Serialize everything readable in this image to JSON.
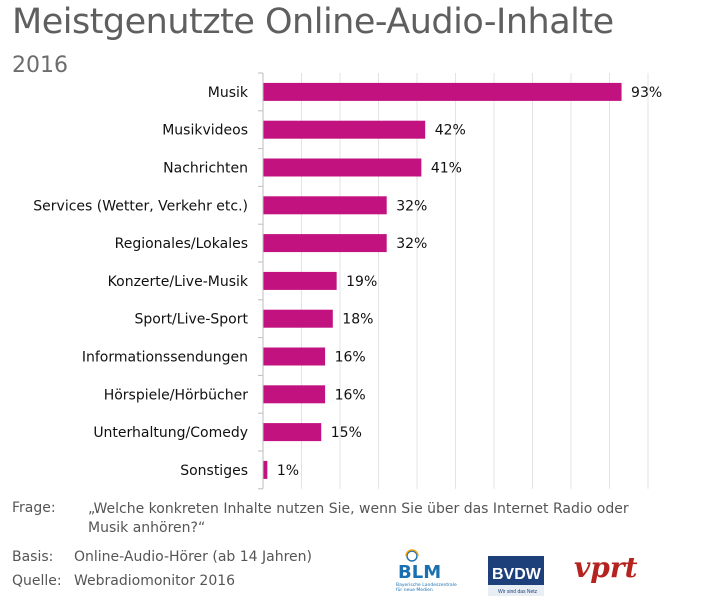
{
  "title": "Meistgenutzte Online-Audio-Inhalte",
  "subtitle": "2016",
  "chart_data": {
    "type": "bar",
    "orientation": "horizontal",
    "categories": [
      "Musik",
      "Musikvideos",
      "Nachrichten",
      "Services (Wetter, Verkehr etc.)",
      "Regionales/Lokales",
      "Konzerte/Live-Musik",
      "Sport/Live-Sport",
      "Informationssendungen",
      "Hörspiele/Hörbücher",
      "Unterhaltung/Comedy",
      "Sonstiges"
    ],
    "values": [
      93,
      42,
      41,
      32,
      32,
      19,
      18,
      16,
      16,
      15,
      1
    ],
    "value_labels": [
      "93%",
      "42%",
      "41%",
      "32%",
      "32%",
      "19%",
      "18%",
      "16%",
      "16%",
      "15%",
      "1%"
    ],
    "xlim": [
      0,
      100
    ],
    "grid": true,
    "bar_color": "#c2127f"
  },
  "footer": {
    "frage_key": "Frage:",
    "frage_text": "„Welche konkreten Inhalte nutzen Sie, wenn Sie über das Internet Radio oder Musik anhören?“",
    "basis_key": "Basis:",
    "basis_text": "Online-Audio-Hörer (ab 14 Jahren)",
    "quelle_key": "Quelle:",
    "quelle_text": "Webradiomonitor 2016"
  },
  "logos": {
    "blm": {
      "text": "BLM",
      "subtext": "Bayerische Landeszentrale für neue Medien",
      "color": "#1a6fb0"
    },
    "bvdw": {
      "text": "BVDW",
      "subtext": "Wir sind das Netz",
      "color": "#1d3f7a"
    },
    "vprt": {
      "text": "vprt",
      "color": "#b5231f"
    }
  }
}
